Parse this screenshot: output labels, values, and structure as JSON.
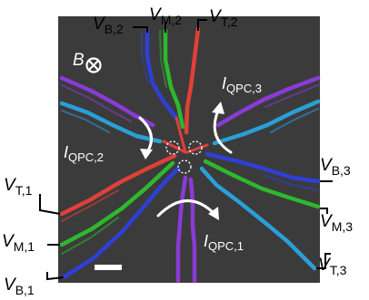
{
  "colors": {
    "background": "#ffffff",
    "sem_image": "#3a3a3a",
    "gate_B": "#2f3fd6",
    "gate_M": "#2eb82e",
    "gate_T": "#e0403a",
    "gate_purple": "#8a3bd6",
    "gate_cyan": "#2a9fd8",
    "annotation": "#ffffff"
  },
  "field": {
    "symbol": "B",
    "direction_icon": "into-page-circled-x-icon"
  },
  "voltage_labels": [
    {
      "id": "VB2",
      "base": "V",
      "sub": "B,2"
    },
    {
      "id": "VM2",
      "base": "V",
      "sub": "M,2"
    },
    {
      "id": "VT2",
      "base": "V",
      "sub": "T,2"
    },
    {
      "id": "VB3",
      "base": "V",
      "sub": "B,3"
    },
    {
      "id": "VM3",
      "base": "V",
      "sub": "M,3"
    },
    {
      "id": "VT3",
      "base": "V",
      "sub": "T,3"
    },
    {
      "id": "VT1",
      "base": "V",
      "sub": "T,1"
    },
    {
      "id": "VM1",
      "base": "V",
      "sub": "M,1"
    },
    {
      "id": "VB1",
      "base": "V",
      "sub": "B,1"
    }
  ],
  "current_labels": [
    {
      "id": "I3",
      "base": "I",
      "sub": "QPC,3"
    },
    {
      "id": "I2",
      "base": "I",
      "sub": "QPC,2"
    },
    {
      "id": "I1",
      "base": "I",
      "sub": "QPC,1"
    }
  ],
  "icons": [
    "curved-arrow-icon",
    "dashed-circle-icon",
    "scale-bar-icon"
  ]
}
